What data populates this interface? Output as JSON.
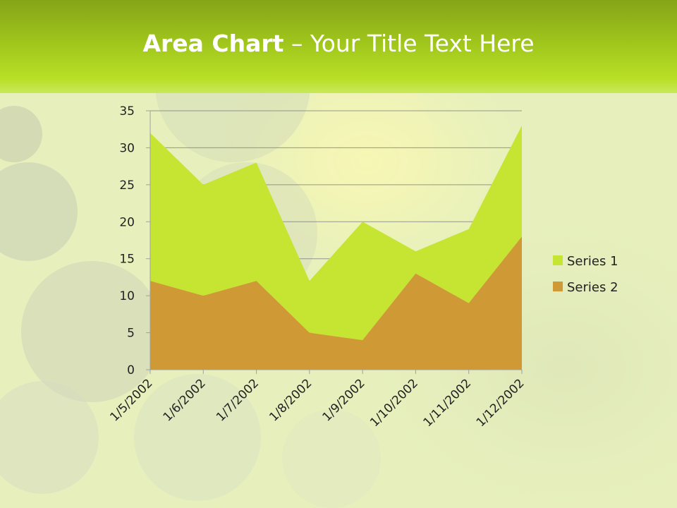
{
  "title": {
    "bold_part": "Area Chart",
    "regular_part": " – Your Title Text Here"
  },
  "colors": {
    "series1": "#c6e432",
    "series2": "#cf9935",
    "title_band": "#a9cf1e",
    "gridline": "#7f7f7f",
    "axis": "#a0a0a0"
  },
  "chart_data": {
    "type": "area",
    "stacked": true,
    "categories": [
      "1/5/2002",
      "1/6/2002",
      "1/7/2002",
      "1/8/2002",
      "1/9/2002",
      "1/10/2002",
      "1/11/2002",
      "1/12/2002"
    ],
    "series": [
      {
        "name": "Series 1",
        "values": [
          20,
          15,
          16,
          7,
          16,
          3,
          10,
          15
        ]
      },
      {
        "name": "Series 2",
        "values": [
          12,
          10,
          12,
          5,
          4,
          13,
          9,
          18
        ]
      }
    ],
    "stacked_totals": [
      32,
      25,
      28,
      12,
      20,
      16,
      19,
      33
    ],
    "ylim": [
      0,
      35
    ],
    "yticks": [
      0,
      5,
      10,
      15,
      20,
      25,
      30,
      35
    ],
    "grid": true,
    "legend_position": "right"
  }
}
